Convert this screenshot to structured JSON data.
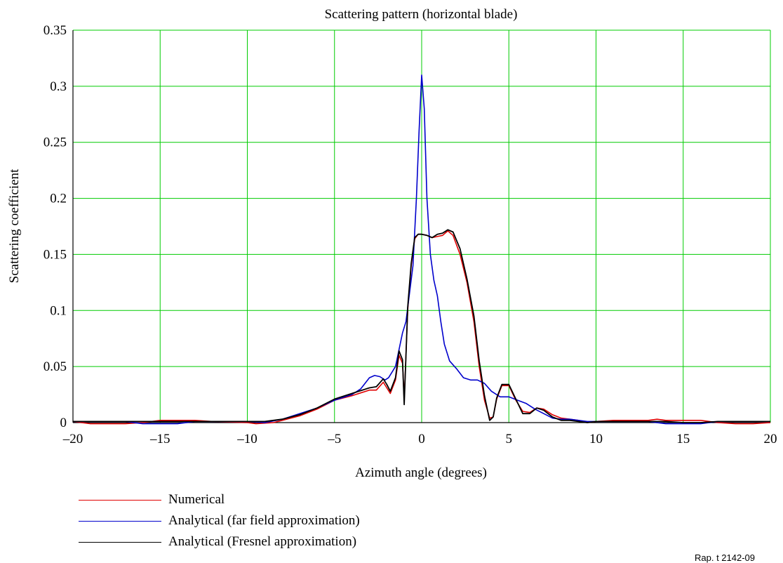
{
  "chart_data": {
    "type": "line",
    "title": "Scattering pattern (horizontal blade)",
    "xlabel": "Azimuth angle (degrees)",
    "ylabel": "Scattering coefficient",
    "xlim": [
      -20,
      20
    ],
    "ylim": [
      0,
      0.35
    ],
    "xticks": [
      -20,
      -15,
      -10,
      -5,
      0,
      5,
      10,
      15,
      20
    ],
    "xtick_labels": [
      "–20",
      "–15",
      "–10",
      "–5",
      "0",
      "5",
      "10",
      "15",
      "20"
    ],
    "yticks": [
      0,
      0.05,
      0.1,
      0.15,
      0.2,
      0.25,
      0.3,
      0.35
    ],
    "ytick_labels": [
      "0",
      "0.05",
      "0.1",
      "0.15",
      "0.2",
      "0.25",
      "0.3",
      "0.35"
    ],
    "grid": true,
    "grid_color": "#00cc00",
    "legend_position": "bottom-left",
    "series": [
      {
        "name": "Numerical",
        "color": "#e00000",
        "x": [
          -20,
          -19,
          -17,
          -16,
          -15,
          -13,
          -12,
          -10,
          -9.5,
          -8.5,
          -8,
          -7,
          -6,
          -5,
          -4,
          -3,
          -2.6,
          -2.2,
          -2,
          -1.8,
          -1.5,
          -1.3,
          -1.1,
          -1,
          -0.8,
          -0.6,
          -0.4,
          -0.2,
          0,
          0.3,
          0.6,
          0.9,
          1.2,
          1.5,
          1.8,
          2.2,
          2.6,
          3,
          3.3,
          3.6,
          3.9,
          4.1,
          4.3,
          4.6,
          5,
          5.4,
          5.8,
          6.2,
          6.6,
          7,
          7.5,
          8,
          8.5,
          9,
          9.5,
          10,
          11,
          12,
          13,
          13.5,
          14,
          15,
          16,
          17,
          18,
          19,
          20
        ],
        "y": [
          0.001,
          -0.001,
          -0.001,
          0,
          0.002,
          0.002,
          0.001,
          0,
          -0.001,
          0,
          0.002,
          0.006,
          0.012,
          0.02,
          0.024,
          0.029,
          0.029,
          0.036,
          0.031,
          0.026,
          0.038,
          0.06,
          0.053,
          0.02,
          0.1,
          0.14,
          0.164,
          0.168,
          0.168,
          0.167,
          0.165,
          0.166,
          0.167,
          0.171,
          0.167,
          0.15,
          0.125,
          0.09,
          0.05,
          0.02,
          0.004,
          0.005,
          0.021,
          0.033,
          0.033,
          0.02,
          0.01,
          0.009,
          0.013,
          0.012,
          0.007,
          0.004,
          0.003,
          0.002,
          0,
          0.001,
          0.002,
          0.002,
          0.002,
          0.003,
          0.002,
          0.002,
          0.002,
          0,
          -0.001,
          -0.001,
          0
        ]
      },
      {
        "name": "Analytical (far field approximation)",
        "color": "#0000cc",
        "x": [
          -20,
          -17,
          -16,
          -14,
          -13,
          -10,
          -9,
          -8,
          -7,
          -6,
          -5,
          -4,
          -3.5,
          -3,
          -2.7,
          -2.4,
          -2.1,
          -1.9,
          -1.7,
          -1.5,
          -1.3,
          -1.1,
          -0.9,
          -0.7,
          -0.5,
          -0.3,
          -0.15,
          0,
          0.15,
          0.3,
          0.5,
          0.7,
          0.9,
          1.1,
          1.3,
          1.6,
          2,
          2.4,
          2.8,
          3.2,
          3.6,
          4,
          4.5,
          5,
          5.5,
          6,
          6.5,
          7,
          7.5,
          8,
          8.5,
          9,
          9.5,
          10,
          11,
          13,
          14,
          16,
          17,
          20
        ],
        "y": [
          0.001,
          0.001,
          -0.001,
          -0.001,
          0.001,
          0.001,
          0,
          0.003,
          0.008,
          0.013,
          0.02,
          0.025,
          0.03,
          0.04,
          0.042,
          0.041,
          0.038,
          0.04,
          0.045,
          0.05,
          0.065,
          0.08,
          0.09,
          0.115,
          0.14,
          0.2,
          0.26,
          0.31,
          0.28,
          0.2,
          0.15,
          0.127,
          0.113,
          0.09,
          0.07,
          0.055,
          0.048,
          0.04,
          0.038,
          0.038,
          0.035,
          0.028,
          0.023,
          0.023,
          0.02,
          0.017,
          0.012,
          0.008,
          0.004,
          0.003,
          0.003,
          0.002,
          0.001,
          0.001,
          0.001,
          0.001,
          -0.001,
          -0.001,
          0.001,
          0.001
        ]
      },
      {
        "name": "Analytical (Fresnel approximation)",
        "color": "#000000",
        "x": [
          -20,
          -12,
          -10,
          -9,
          -8,
          -7,
          -6,
          -5,
          -4,
          -3,
          -2.6,
          -2.2,
          -2,
          -1.8,
          -1.5,
          -1.3,
          -1.1,
          -1,
          -0.8,
          -0.6,
          -0.4,
          -0.2,
          0,
          0.3,
          0.6,
          0.9,
          1.2,
          1.5,
          1.8,
          2.2,
          2.6,
          3,
          3.3,
          3.6,
          3.9,
          4.1,
          4.3,
          4.6,
          5,
          5.4,
          5.8,
          6.2,
          6.6,
          7,
          7.5,
          8,
          8.5,
          9,
          9.5,
          10,
          12,
          14,
          15,
          16,
          17,
          20
        ],
        "y": [
          0.001,
          0.001,
          0.001,
          0.001,
          0.003,
          0.007,
          0.013,
          0.021,
          0.026,
          0.031,
          0.032,
          0.039,
          0.034,
          0.028,
          0.04,
          0.064,
          0.056,
          0.016,
          0.103,
          0.142,
          0.165,
          0.168,
          0.168,
          0.167,
          0.165,
          0.168,
          0.169,
          0.172,
          0.17,
          0.155,
          0.128,
          0.095,
          0.055,
          0.024,
          0.002,
          0.005,
          0.022,
          0.034,
          0.034,
          0.021,
          0.008,
          0.008,
          0.013,
          0.011,
          0.005,
          0.002,
          0.002,
          0.001,
          0,
          0.001,
          0.001,
          0.001,
          0,
          0,
          0.001,
          0.001
        ]
      }
    ]
  },
  "figure_ref": "Rap. t 2142-09"
}
